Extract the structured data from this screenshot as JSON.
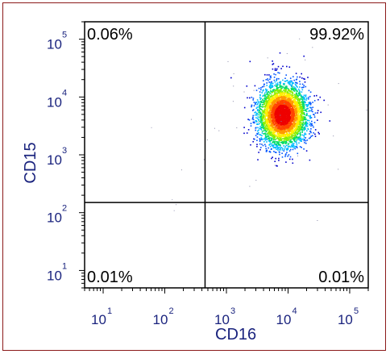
{
  "chart_data": {
    "type": "scatter",
    "title": "",
    "xlabel": "CD16",
    "ylabel": "CD15",
    "xscale": "log",
    "yscale": "log",
    "xlim": [
      5,
      200000
    ],
    "ylim": [
      5,
      200000
    ],
    "x_ticks": [
      {
        "base": "10",
        "exp": "1",
        "value": 10
      },
      {
        "base": "10",
        "exp": "2",
        "value": 100
      },
      {
        "base": "10",
        "exp": "3",
        "value": 1000
      },
      {
        "base": "10",
        "exp": "4",
        "value": 10000
      },
      {
        "base": "10",
        "exp": "5",
        "value": 100000
      }
    ],
    "y_ticks": [
      {
        "base": "10",
        "exp": "1",
        "value": 10
      },
      {
        "base": "10",
        "exp": "2",
        "value": 100
      },
      {
        "base": "10",
        "exp": "3",
        "value": 1000
      },
      {
        "base": "10",
        "exp": "4",
        "value": 10000
      },
      {
        "base": "10",
        "exp": "5",
        "value": 100000
      }
    ],
    "gate": {
      "x": 450,
      "y": 150
    },
    "quadrants": {
      "top_left": "0.06%",
      "top_right": "99.92%",
      "bottom_left": "0.01%",
      "bottom_right": "0.01%"
    },
    "population": {
      "center_x": 8000,
      "center_y": 5000
    },
    "density_colors": [
      "#0000cc",
      "#0055ff",
      "#00bbff",
      "#00dd66",
      "#88ee00",
      "#ffee00",
      "#ff9900",
      "#ff4400",
      "#ee0000"
    ]
  }
}
